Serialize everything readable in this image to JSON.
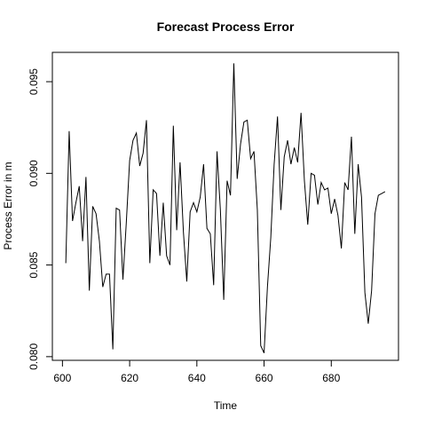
{
  "chart_data": {
    "type": "line",
    "title": "Forecast Process Error",
    "xlabel": "Time",
    "ylabel": "Process Error in m",
    "xlim": [
      597,
      700
    ],
    "ylim": [
      0.0798,
      0.0966
    ],
    "xticks": [
      600,
      620,
      640,
      660,
      680
    ],
    "yticks": [
      0.08,
      0.085,
      0.09,
      0.095
    ],
    "xtick_labels": [
      "600",
      "620",
      "640",
      "660",
      "680"
    ],
    "ytick_labels": [
      "0.080",
      "0.085",
      "0.090",
      "0.095"
    ],
    "grid": false,
    "legend": "none",
    "line_color": "#000000",
    "series": [
      {
        "x": [
          601,
          602,
          603,
          604,
          605,
          606,
          607,
          608,
          609,
          610,
          611,
          612,
          613,
          614,
          615,
          616,
          617,
          618,
          619,
          620,
          621,
          622,
          623,
          624,
          625,
          626,
          627,
          628,
          629,
          630,
          631,
          632,
          633,
          634,
          635,
          636,
          637,
          638,
          639,
          640,
          641,
          642,
          643,
          644,
          645,
          646,
          647,
          648,
          649,
          650,
          651,
          652,
          653,
          654,
          655,
          656,
          657,
          658,
          659,
          660,
          661,
          662,
          663,
          664,
          665,
          666,
          667,
          668,
          669,
          670,
          671,
          672,
          673,
          674,
          675,
          676,
          677,
          678,
          679,
          680,
          681,
          682,
          683,
          684,
          685,
          686,
          687,
          688,
          689,
          690,
          691,
          692,
          693,
          694,
          695,
          696
        ],
        "y": [
          0.0851,
          0.0923,
          0.0874,
          0.0884,
          0.0893,
          0.0863,
          0.0898,
          0.0836,
          0.0882,
          0.0878,
          0.0863,
          0.0838,
          0.0845,
          0.0845,
          0.0804,
          0.0881,
          0.088,
          0.0842,
          0.0873,
          0.0907,
          0.0918,
          0.0922,
          0.0904,
          0.0911,
          0.0929,
          0.0851,
          0.0891,
          0.0889,
          0.0855,
          0.0884,
          0.0855,
          0.085,
          0.0926,
          0.0869,
          0.0906,
          0.0868,
          0.0841,
          0.0879,
          0.0884,
          0.0879,
          0.0887,
          0.0905,
          0.087,
          0.0867,
          0.0839,
          0.0912,
          0.088,
          0.0831,
          0.0896,
          0.0888,
          0.096,
          0.0897,
          0.0916,
          0.0928,
          0.0929,
          0.0908,
          0.0912,
          0.088,
          0.0806,
          0.0802,
          0.0838,
          0.0865,
          0.0905,
          0.0931,
          0.088,
          0.0909,
          0.0918,
          0.0905,
          0.0914,
          0.0906,
          0.0933,
          0.0896,
          0.0872,
          0.09,
          0.0899,
          0.0883,
          0.0895,
          0.0891,
          0.0892,
          0.0878,
          0.0886,
          0.0877,
          0.0859,
          0.0895,
          0.0891,
          0.092,
          0.0867,
          0.0905,
          0.0887,
          0.0835,
          0.0818,
          0.0836,
          0.0878,
          0.0888,
          0.0889,
          0.089
        ]
      }
    ]
  }
}
